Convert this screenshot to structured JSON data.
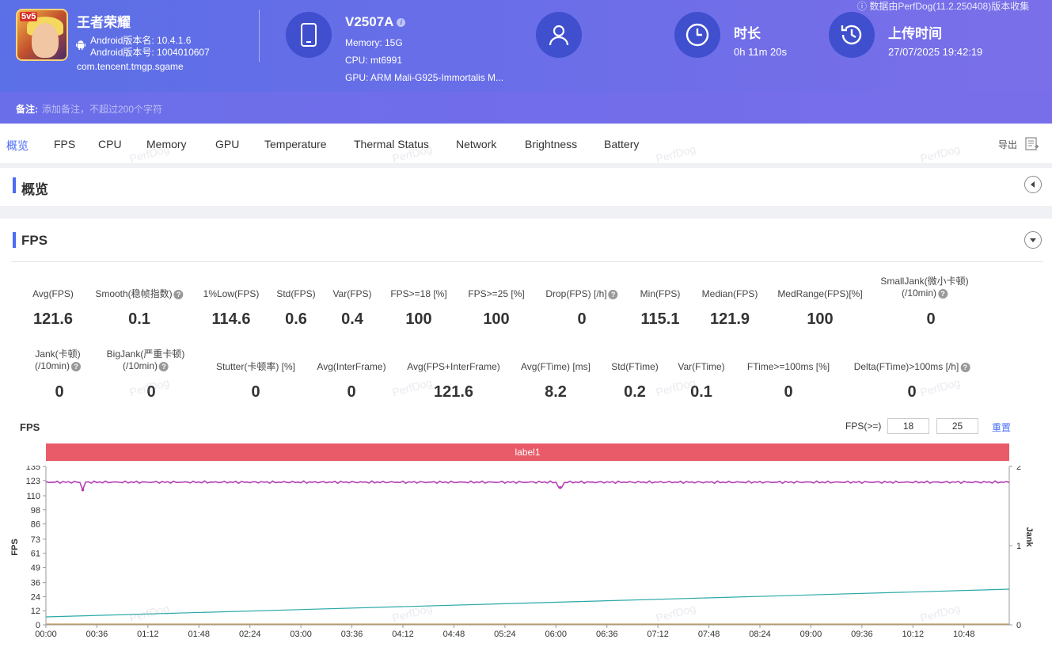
{
  "app": {
    "name": "王者荣耀",
    "icon_badge": "5v5",
    "version_name": "Android版本名: 10.4.1.6",
    "version_code": "Android版本号: 1004010607",
    "package": "com.tencent.tmgp.sgame"
  },
  "device": {
    "name": "V2507A",
    "memory": "Memory: 15G",
    "cpu": "CPU: mt6991",
    "gpu": "GPU: ARM Mali-G925-Immortalis M..."
  },
  "duration": {
    "title": "时长",
    "value": "0h 11m 20s"
  },
  "upload": {
    "title": "上传时间",
    "value": "27/07/2025 19:42:19"
  },
  "source_note": "ⓘ 数据由PerfDog(11.2.250408)版本收集",
  "remark": {
    "label": "备注:",
    "placeholder": "添加备注，不超过200个字符"
  },
  "tabs": [
    "概览",
    "FPS",
    "CPU",
    "Memory",
    "GPU",
    "Temperature",
    "Thermal Status",
    "Network",
    "Brightness",
    "Battery"
  ],
  "export_label": "导出",
  "sections": {
    "overview": "概览",
    "fps": "FPS"
  },
  "watermark": "PerfDog",
  "stats_row1": [
    {
      "label": "Avg(FPS)",
      "value": "121.6"
    },
    {
      "label": "Smooth(稳帧指数)",
      "value": "0.1"
    },
    {
      "label": "1%Low(FPS)",
      "value": "114.6"
    },
    {
      "label": "Std(FPS)",
      "value": "0.6"
    },
    {
      "label": "Var(FPS)",
      "value": "0.4"
    },
    {
      "label": "FPS>=18 [%]",
      "value": "100"
    },
    {
      "label": "FPS>=25 [%]",
      "value": "100"
    },
    {
      "label": "Drop(FPS) [/h]",
      "value": "0"
    },
    {
      "label": "Min(FPS)",
      "value": "115.1"
    },
    {
      "label": "Median(FPS)",
      "value": "121.9"
    },
    {
      "label": "MedRange(FPS)[%]",
      "value": "100"
    },
    {
      "label": "SmallJank(微小卡顿)",
      "label2": "(/10min)",
      "value": "0"
    }
  ],
  "stats_row2": [
    {
      "label": "Jank(卡顿)",
      "label2": "(/10min)",
      "value": "0"
    },
    {
      "label": "BigJank(严重卡顿)",
      "label2": "(/10min)",
      "value": "0"
    },
    {
      "label": "Stutter(卡顿率) [%]",
      "value": "0"
    },
    {
      "label": "Avg(InterFrame)",
      "value": "0"
    },
    {
      "label": "Avg(FPS+InterFrame)",
      "value": "121.6"
    },
    {
      "label": "Avg(FTime) [ms]",
      "value": "8.2"
    },
    {
      "label": "Std(FTime)",
      "value": "0.2"
    },
    {
      "label": "Var(FTime)",
      "value": "0.1"
    },
    {
      "label": "FTime>=100ms [%]",
      "value": "0"
    },
    {
      "label": "Delta(FTime)>100ms [/h]",
      "value": "0"
    }
  ],
  "chart_controls": {
    "title": "FPS",
    "threshold_label": "FPS(>=)",
    "threshold1": "18",
    "threshold2": "25",
    "reset_label": "重置",
    "band_label": "label1"
  },
  "chart_data": {
    "type": "line",
    "ylabel": "FPS",
    "y2label": "Jank",
    "yticks": [
      0,
      12,
      24,
      36,
      49,
      61,
      73,
      86,
      98,
      110,
      123,
      135
    ],
    "ylim": [
      0,
      135
    ],
    "y2ticks": [
      0,
      1,
      2
    ],
    "y2lim": [
      0,
      2
    ],
    "xticks": [
      "00:00",
      "00:36",
      "01:12",
      "01:48",
      "02:24",
      "03:00",
      "03:36",
      "04:12",
      "04:48",
      "05:24",
      "06:00",
      "06:36",
      "07:12",
      "07:48",
      "08:24",
      "09:00",
      "09:36",
      "10:12",
      "10:48"
    ],
    "x_max_seconds": 680,
    "series": [
      {
        "name": "FPS",
        "color": "#b540b5",
        "baseline": 121.6,
        "dips": [
          {
            "t": 26,
            "v": 115
          },
          {
            "t": 363,
            "v": 117
          }
        ]
      },
      {
        "name": "Jank-trend",
        "color": "#2aa8a8",
        "start": 0.1,
        "end": 0.45
      },
      {
        "name": "Jank",
        "color": "#c0a060",
        "value": 0
      }
    ]
  }
}
